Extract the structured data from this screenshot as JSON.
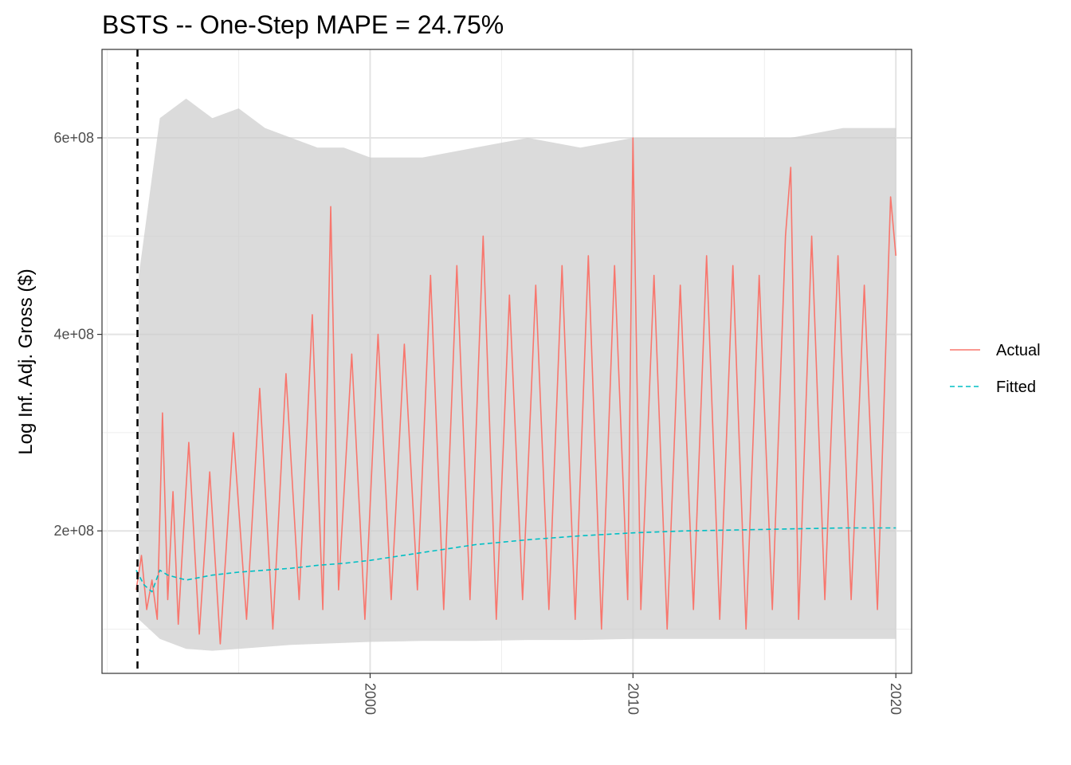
{
  "chart_data": {
    "type": "line",
    "title": "BSTS -- One-Step MAPE = 24.75%",
    "xlabel": "",
    "ylabel": "Log Inf. Adj. Gross ($)",
    "xlim": [
      1989.8,
      2020.6
    ],
    "ylim": [
      55000000,
      690000000
    ],
    "x_ticks": [
      {
        "value": 2000,
        "label": "2000"
      },
      {
        "value": 2010,
        "label": "2010"
      },
      {
        "value": 2020,
        "label": "2020"
      }
    ],
    "y_ticks": [
      {
        "value": 200000000,
        "label": "2e+08"
      },
      {
        "value": 400000000,
        "label": "4e+08"
      },
      {
        "value": 600000000,
        "label": "6e+08"
      }
    ],
    "grid": true,
    "legend_position": "right",
    "cutoff_x": 1991.15,
    "series": [
      {
        "name": "Actual",
        "color": "#F8766D",
        "style": "solid",
        "x": [
          1991.1,
          1991.3,
          1991.5,
          1991.7,
          1991.9,
          1992.1,
          1992.3,
          1992.5,
          1992.7,
          1992.9,
          1993.1,
          1993.5,
          1993.9,
          1994.3,
          1994.8,
          1995.3,
          1995.8,
          1996.3,
          1996.8,
          1997.3,
          1997.8,
          1998.2,
          1998.5,
          1998.8,
          1999.3,
          1999.8,
          2000.3,
          2000.8,
          2001.3,
          2001.8,
          2002.3,
          2002.8,
          2003.3,
          2003.8,
          2004.3,
          2004.8,
          2005.3,
          2005.8,
          2006.3,
          2006.8,
          2007.3,
          2007.8,
          2008.3,
          2008.8,
          2009.3,
          2009.8,
          2010.0,
          2010.3,
          2010.8,
          2011.3,
          2011.8,
          2012.3,
          2012.8,
          2013.3,
          2013.8,
          2014.3,
          2014.8,
          2015.3,
          2015.8,
          2016.0,
          2016.3,
          2016.8,
          2017.3,
          2017.8,
          2018.3,
          2018.8,
          2019.3,
          2019.8,
          2020.0
        ],
        "values": [
          140000000,
          175000000,
          120000000,
          150000000,
          110000000,
          320000000,
          130000000,
          240000000,
          105000000,
          200000000,
          290000000,
          95000000,
          260000000,
          85000000,
          300000000,
          110000000,
          345000000,
          100000000,
          360000000,
          130000000,
          420000000,
          120000000,
          530000000,
          140000000,
          380000000,
          110000000,
          400000000,
          130000000,
          390000000,
          140000000,
          460000000,
          120000000,
          470000000,
          130000000,
          500000000,
          110000000,
          440000000,
          130000000,
          450000000,
          120000000,
          470000000,
          110000000,
          480000000,
          100000000,
          470000000,
          130000000,
          600000000,
          120000000,
          460000000,
          100000000,
          450000000,
          120000000,
          480000000,
          110000000,
          470000000,
          100000000,
          460000000,
          120000000,
          500000000,
          570000000,
          110000000,
          500000000,
          130000000,
          480000000,
          130000000,
          450000000,
          120000000,
          540000000,
          480000000
        ]
      },
      {
        "name": "Fitted",
        "color": "#00BFC4",
        "style": "dashed",
        "x": [
          1991.1,
          1991.4,
          1991.7,
          1992.0,
          1992.3,
          1993.0,
          1994.0,
          1995.0,
          1996.0,
          1997.0,
          1998.0,
          1999.0,
          2000.0,
          2002.0,
          2004.0,
          2006.0,
          2008.0,
          2010.0,
          2012.0,
          2014.0,
          2016.0,
          2018.0,
          2020.0
        ],
        "values": [
          160000000,
          145000000,
          138000000,
          160000000,
          155000000,
          150000000,
          155000000,
          158000000,
          160000000,
          162000000,
          165000000,
          167000000,
          170000000,
          178000000,
          186000000,
          191000000,
          195000000,
          198000000,
          200000000,
          201000000,
          202000000,
          203000000,
          203000000
        ]
      }
    ],
    "ribbon": {
      "color": "#cccccc",
      "x": [
        1991.2,
        1992.0,
        1993.0,
        1994.0,
        1995.0,
        1996.0,
        1997.0,
        1998.0,
        1999.0,
        2000.0,
        2002.0,
        2004.0,
        2006.0,
        2008.0,
        2010.0,
        2012.0,
        2014.0,
        2016.0,
        2018.0,
        2020.0
      ],
      "lower": [
        110000000,
        90000000,
        80000000,
        78000000,
        80000000,
        82000000,
        84000000,
        85000000,
        86000000,
        87000000,
        88000000,
        88000000,
        89000000,
        89000000,
        90000000,
        90000000,
        90000000,
        90000000,
        90000000,
        90000000
      ],
      "upper": [
        460000000,
        620000000,
        640000000,
        620000000,
        630000000,
        610000000,
        600000000,
        590000000,
        590000000,
        580000000,
        580000000,
        590000000,
        600000000,
        590000000,
        600000000,
        600000000,
        600000000,
        600000000,
        610000000,
        610000000
      ]
    }
  }
}
